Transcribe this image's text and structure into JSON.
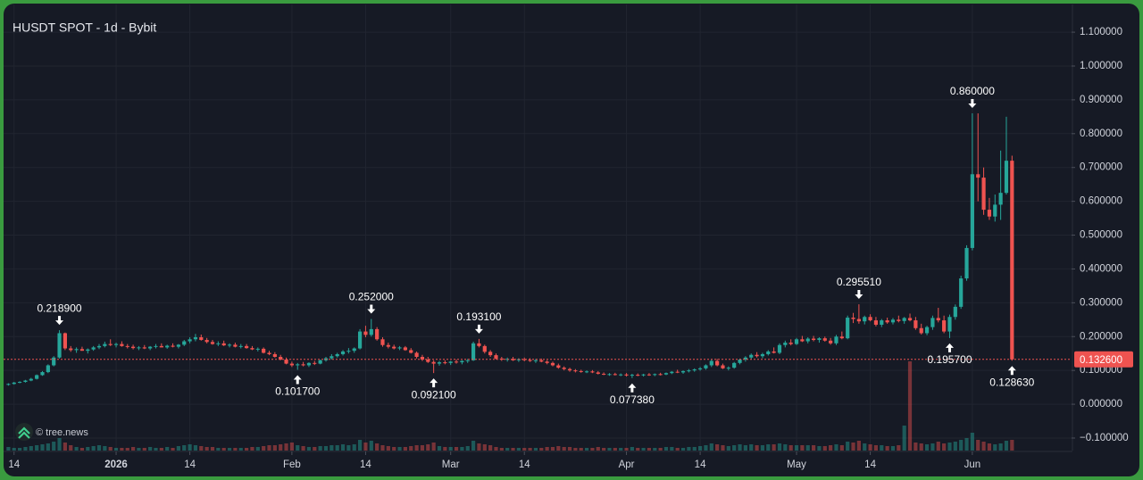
{
  "chart_data": {
    "type": "candlestick",
    "title": "HUSDT SPOT - 1d - Bybit",
    "watermark": "© tree.news",
    "up_color": "#26a69a",
    "down_color": "#ef5350",
    "grid": true,
    "xlim": [
      -1.48,
      187.5
    ],
    "ylim": [
      -0.137,
      1.182
    ],
    "y2lim": [
      0,
      500
    ],
    "xticks": [
      {
        "value": 1,
        "label": "14"
      },
      {
        "value": 19,
        "label": "2026"
      },
      {
        "value": 32,
        "label": "14"
      },
      {
        "value": 50,
        "label": "Feb"
      },
      {
        "value": 63,
        "label": "14"
      },
      {
        "value": 78,
        "label": "Mar"
      },
      {
        "value": 91,
        "label": "14"
      },
      {
        "value": 109,
        "label": "Apr"
      },
      {
        "value": 122,
        "label": "14"
      },
      {
        "value": 139,
        "label": "May"
      },
      {
        "value": 152,
        "label": "14"
      },
      {
        "value": 170,
        "label": "Jun"
      }
    ],
    "yticks": [
      {
        "value": 1.1,
        "label": "1.100000"
      },
      {
        "value": 1.0,
        "label": "1.000000"
      },
      {
        "value": 0.9,
        "label": "0.900000"
      },
      {
        "value": 0.8,
        "label": "0.800000"
      },
      {
        "value": 0.7,
        "label": "0.700000"
      },
      {
        "value": 0.6,
        "label": "0.600000"
      },
      {
        "value": 0.5,
        "label": "0.500000"
      },
      {
        "value": 0.4,
        "label": "0.400000"
      },
      {
        "value": 0.3,
        "label": "0.300000"
      },
      {
        "value": 0.2,
        "label": "0.200000"
      },
      {
        "value": 0.1,
        "label": "0.100000"
      },
      {
        "value": 0,
        "label": "0.000000"
      },
      {
        "value": -0.1,
        "label": "−0.100000"
      }
    ],
    "candles": [
      [
        0.058,
        0.062,
        0.055,
        0.06
      ],
      [
        0.06,
        0.066,
        0.058,
        0.064
      ],
      [
        0.064,
        0.068,
        0.062,
        0.066
      ],
      [
        0.066,
        0.072,
        0.064,
        0.07
      ],
      [
        0.07,
        0.078,
        0.068,
        0.075
      ],
      [
        0.075,
        0.088,
        0.073,
        0.086
      ],
      [
        0.086,
        0.098,
        0.084,
        0.095
      ],
      [
        0.095,
        0.118,
        0.092,
        0.115
      ],
      [
        0.115,
        0.142,
        0.112,
        0.138
      ],
      [
        0.138,
        0.2189,
        0.135,
        0.21
      ],
      [
        0.21,
        0.212,
        0.16,
        0.165
      ],
      [
        0.165,
        0.172,
        0.155,
        0.16
      ],
      [
        0.16,
        0.168,
        0.152,
        0.163
      ],
      [
        0.163,
        0.17,
        0.158,
        0.158
      ],
      [
        0.158,
        0.165,
        0.15,
        0.162
      ],
      [
        0.162,
        0.172,
        0.158,
        0.168
      ],
      [
        0.168,
        0.178,
        0.163,
        0.172
      ],
      [
        0.172,
        0.185,
        0.168,
        0.178
      ],
      [
        0.178,
        0.192,
        0.172,
        0.175
      ],
      [
        0.175,
        0.182,
        0.168,
        0.178
      ],
      [
        0.178,
        0.186,
        0.17,
        0.172
      ],
      [
        0.172,
        0.178,
        0.165,
        0.17
      ],
      [
        0.17,
        0.176,
        0.162,
        0.166
      ],
      [
        0.166,
        0.172,
        0.16,
        0.168
      ],
      [
        0.168,
        0.175,
        0.163,
        0.165
      ],
      [
        0.165,
        0.172,
        0.16,
        0.17
      ],
      [
        0.17,
        0.178,
        0.165,
        0.172
      ],
      [
        0.172,
        0.18,
        0.168,
        0.168
      ],
      [
        0.168,
        0.176,
        0.164,
        0.173
      ],
      [
        0.173,
        0.18,
        0.168,
        0.17
      ],
      [
        0.17,
        0.178,
        0.165,
        0.176
      ],
      [
        0.176,
        0.19,
        0.172,
        0.186
      ],
      [
        0.186,
        0.198,
        0.18,
        0.192
      ],
      [
        0.192,
        0.208,
        0.186,
        0.198
      ],
      [
        0.198,
        0.206,
        0.188,
        0.19
      ],
      [
        0.19,
        0.196,
        0.18,
        0.184
      ],
      [
        0.184,
        0.19,
        0.176,
        0.178
      ],
      [
        0.178,
        0.186,
        0.172,
        0.18
      ],
      [
        0.18,
        0.188,
        0.172,
        0.174
      ],
      [
        0.174,
        0.18,
        0.168,
        0.176
      ],
      [
        0.176,
        0.182,
        0.168,
        0.17
      ],
      [
        0.17,
        0.178,
        0.165,
        0.172
      ],
      [
        0.172,
        0.178,
        0.164,
        0.166
      ],
      [
        0.166,
        0.172,
        0.16,
        0.162
      ],
      [
        0.162,
        0.168,
        0.156,
        0.164
      ],
      [
        0.164,
        0.168,
        0.15,
        0.152
      ],
      [
        0.152,
        0.158,
        0.145,
        0.148
      ],
      [
        0.148,
        0.154,
        0.138,
        0.14
      ],
      [
        0.14,
        0.146,
        0.13,
        0.132
      ],
      [
        0.132,
        0.138,
        0.118,
        0.12
      ],
      [
        0.12,
        0.126,
        0.11,
        0.115
      ],
      [
        0.115,
        0.122,
        0.1017,
        0.118
      ],
      [
        0.118,
        0.125,
        0.112,
        0.115
      ],
      [
        0.115,
        0.124,
        0.11,
        0.122
      ],
      [
        0.122,
        0.128,
        0.116,
        0.12
      ],
      [
        0.12,
        0.132,
        0.118,
        0.13
      ],
      [
        0.13,
        0.14,
        0.126,
        0.136
      ],
      [
        0.136,
        0.148,
        0.132,
        0.142
      ],
      [
        0.142,
        0.152,
        0.138,
        0.148
      ],
      [
        0.148,
        0.16,
        0.144,
        0.156
      ],
      [
        0.156,
        0.166,
        0.15,
        0.158
      ],
      [
        0.158,
        0.168,
        0.152,
        0.165
      ],
      [
        0.165,
        0.222,
        0.162,
        0.215
      ],
      [
        0.215,
        0.232,
        0.198,
        0.205
      ],
      [
        0.205,
        0.252,
        0.2,
        0.222
      ],
      [
        0.222,
        0.228,
        0.188,
        0.192
      ],
      [
        0.192,
        0.198,
        0.17,
        0.175
      ],
      [
        0.175,
        0.182,
        0.165,
        0.17
      ],
      [
        0.17,
        0.176,
        0.162,
        0.165
      ],
      [
        0.165,
        0.172,
        0.16,
        0.168
      ],
      [
        0.168,
        0.172,
        0.158,
        0.16
      ],
      [
        0.16,
        0.166,
        0.15,
        0.152
      ],
      [
        0.152,
        0.156,
        0.135,
        0.14
      ],
      [
        0.14,
        0.146,
        0.128,
        0.132
      ],
      [
        0.132,
        0.14,
        0.122,
        0.125
      ],
      [
        0.125,
        0.13,
        0.0921,
        0.12
      ],
      [
        0.12,
        0.128,
        0.114,
        0.124
      ],
      [
        0.124,
        0.13,
        0.118,
        0.122
      ],
      [
        0.122,
        0.128,
        0.116,
        0.126
      ],
      [
        0.126,
        0.132,
        0.12,
        0.124
      ],
      [
        0.124,
        0.13,
        0.118,
        0.128
      ],
      [
        0.128,
        0.134,
        0.122,
        0.13
      ],
      [
        0.13,
        0.185,
        0.128,
        0.18
      ],
      [
        0.18,
        0.1931,
        0.168,
        0.172
      ],
      [
        0.172,
        0.176,
        0.15,
        0.155
      ],
      [
        0.155,
        0.16,
        0.14,
        0.145
      ],
      [
        0.145,
        0.15,
        0.132,
        0.135
      ],
      [
        0.135,
        0.14,
        0.128,
        0.132
      ],
      [
        0.132,
        0.138,
        0.126,
        0.134
      ],
      [
        0.134,
        0.14,
        0.128,
        0.13
      ],
      [
        0.13,
        0.136,
        0.125,
        0.133
      ],
      [
        0.133,
        0.138,
        0.127,
        0.131
      ],
      [
        0.131,
        0.136,
        0.125,
        0.128
      ],
      [
        0.128,
        0.134,
        0.122,
        0.13
      ],
      [
        0.13,
        0.135,
        0.124,
        0.126
      ],
      [
        0.126,
        0.13,
        0.118,
        0.122
      ],
      [
        0.122,
        0.126,
        0.112,
        0.115
      ],
      [
        0.115,
        0.12,
        0.105,
        0.108
      ],
      [
        0.108,
        0.112,
        0.1,
        0.104
      ],
      [
        0.104,
        0.108,
        0.096,
        0.1
      ],
      [
        0.1,
        0.104,
        0.094,
        0.098
      ],
      [
        0.098,
        0.102,
        0.093,
        0.096
      ],
      [
        0.096,
        0.1,
        0.092,
        0.097
      ],
      [
        0.097,
        0.101,
        0.092,
        0.094
      ],
      [
        0.094,
        0.098,
        0.088,
        0.09
      ],
      [
        0.09,
        0.094,
        0.086,
        0.088
      ],
      [
        0.088,
        0.092,
        0.084,
        0.089
      ],
      [
        0.089,
        0.093,
        0.085,
        0.087
      ],
      [
        0.087,
        0.091,
        0.083,
        0.088
      ],
      [
        0.088,
        0.092,
        0.082,
        0.085
      ],
      [
        0.085,
        0.09,
        0.07738,
        0.087
      ],
      [
        0.087,
        0.091,
        0.083,
        0.086
      ],
      [
        0.086,
        0.09,
        0.082,
        0.088
      ],
      [
        0.088,
        0.092,
        0.084,
        0.087
      ],
      [
        0.087,
        0.091,
        0.083,
        0.089
      ],
      [
        0.089,
        0.093,
        0.085,
        0.088
      ],
      [
        0.088,
        0.094,
        0.086,
        0.092
      ],
      [
        0.092,
        0.098,
        0.089,
        0.096
      ],
      [
        0.096,
        0.102,
        0.092,
        0.094
      ],
      [
        0.094,
        0.1,
        0.09,
        0.098
      ],
      [
        0.098,
        0.104,
        0.094,
        0.1
      ],
      [
        0.1,
        0.106,
        0.096,
        0.103
      ],
      [
        0.103,
        0.11,
        0.099,
        0.106
      ],
      [
        0.106,
        0.118,
        0.102,
        0.115
      ],
      [
        0.115,
        0.132,
        0.11,
        0.128
      ],
      [
        0.128,
        0.134,
        0.112,
        0.115
      ],
      [
        0.115,
        0.12,
        0.104,
        0.106
      ],
      [
        0.106,
        0.112,
        0.1,
        0.108
      ],
      [
        0.108,
        0.125,
        0.105,
        0.122
      ],
      [
        0.122,
        0.135,
        0.118,
        0.132
      ],
      [
        0.132,
        0.142,
        0.126,
        0.138
      ],
      [
        0.138,
        0.15,
        0.132,
        0.146
      ],
      [
        0.146,
        0.154,
        0.138,
        0.142
      ],
      [
        0.142,
        0.152,
        0.136,
        0.148
      ],
      [
        0.148,
        0.16,
        0.144,
        0.156
      ],
      [
        0.156,
        0.168,
        0.15,
        0.152
      ],
      [
        0.152,
        0.18,
        0.148,
        0.175
      ],
      [
        0.175,
        0.188,
        0.168,
        0.182
      ],
      [
        0.182,
        0.192,
        0.174,
        0.178
      ],
      [
        0.178,
        0.196,
        0.175,
        0.192
      ],
      [
        0.192,
        0.202,
        0.184,
        0.186
      ],
      [
        0.186,
        0.198,
        0.18,
        0.194
      ],
      [
        0.194,
        0.202,
        0.186,
        0.19
      ],
      [
        0.19,
        0.198,
        0.182,
        0.195
      ],
      [
        0.195,
        0.2,
        0.185,
        0.188
      ],
      [
        0.188,
        0.196,
        0.176,
        0.18
      ],
      [
        0.18,
        0.205,
        0.175,
        0.2
      ],
      [
        0.2,
        0.215,
        0.192,
        0.195
      ],
      [
        0.195,
        0.262,
        0.192,
        0.256
      ],
      [
        0.256,
        0.27,
        0.24,
        0.252
      ],
      [
        0.252,
        0.29551,
        0.238,
        0.245
      ],
      [
        0.245,
        0.262,
        0.236,
        0.258
      ],
      [
        0.258,
        0.266,
        0.245,
        0.248
      ],
      [
        0.248,
        0.258,
        0.23,
        0.235
      ],
      [
        0.235,
        0.252,
        0.228,
        0.248
      ],
      [
        0.248,
        0.256,
        0.238,
        0.242
      ],
      [
        0.242,
        0.255,
        0.236,
        0.25
      ],
      [
        0.25,
        0.262,
        0.242,
        0.246
      ],
      [
        0.246,
        0.258,
        0.238,
        0.255
      ],
      [
        0.255,
        0.268,
        0.245,
        0.248
      ],
      [
        0.248,
        0.258,
        0.22,
        0.225
      ],
      [
        0.225,
        0.238,
        0.206,
        0.21
      ],
      [
        0.21,
        0.232,
        0.204,
        0.228
      ],
      [
        0.228,
        0.262,
        0.22,
        0.255
      ],
      [
        0.255,
        0.285,
        0.242,
        0.248
      ],
      [
        0.248,
        0.262,
        0.21,
        0.215
      ],
      [
        0.215,
        0.265,
        0.1957,
        0.258
      ],
      [
        0.258,
        0.295,
        0.25,
        0.288
      ],
      [
        0.288,
        0.38,
        0.282,
        0.372
      ],
      [
        0.372,
        0.47,
        0.365,
        0.462
      ],
      [
        0.462,
        0.86,
        0.455,
        0.68
      ],
      [
        0.68,
        0.86,
        0.6,
        0.67
      ],
      [
        0.67,
        0.7,
        0.56,
        0.575
      ],
      [
        0.575,
        0.61,
        0.545,
        0.555
      ],
      [
        0.555,
        0.62,
        0.54,
        0.59
      ],
      [
        0.59,
        0.75,
        0.545,
        0.625
      ],
      [
        0.625,
        0.85,
        0.62,
        0.72
      ],
      [
        0.72,
        0.735,
        0.12863,
        0.1326
      ]
    ],
    "volume": [
      4,
      3,
      3,
      4,
      5,
      6,
      7,
      8,
      10,
      14,
      9,
      6,
      4,
      3,
      4,
      5,
      6,
      5,
      4,
      3,
      3,
      3,
      4,
      3,
      3,
      4,
      3,
      3,
      4,
      3,
      5,
      6,
      7,
      6,
      5,
      4,
      4,
      3,
      3,
      3,
      3,
      3,
      3,
      4,
      4,
      5,
      6,
      6,
      7,
      8,
      9,
      6,
      5,
      4,
      4,
      5,
      5,
      6,
      6,
      7,
      6,
      7,
      12,
      9,
      11,
      8,
      6,
      5,
      4,
      4,
      4,
      5,
      6,
      6,
      7,
      9,
      5,
      4,
      4,
      4,
      4,
      5,
      11,
      8,
      7,
      6,
      4,
      3,
      3,
      3,
      3,
      3,
      3,
      3,
      3,
      4,
      4,
      5,
      4,
      4,
      3,
      3,
      3,
      3,
      4,
      3,
      3,
      3,
      3,
      3,
      4,
      3,
      3,
      3,
      3,
      3,
      4,
      4,
      3,
      3,
      4,
      4,
      5,
      6,
      8,
      7,
      6,
      5,
      6,
      7,
      6,
      7,
      6,
      6,
      7,
      7,
      8,
      7,
      6,
      6,
      6,
      6,
      6,
      5,
      5,
      6,
      7,
      6,
      10,
      9,
      11,
      8,
      7,
      6,
      6,
      5,
      5,
      6,
      28,
      100,
      9,
      8,
      7,
      8,
      10,
      8,
      9,
      10,
      12,
      14,
      20,
      12,
      10,
      8,
      7,
      8,
      11,
      12
    ],
    "markers": [
      {
        "candle": 9,
        "at": "high",
        "label": "0.218900"
      },
      {
        "candle": 51,
        "at": "low",
        "label": "0.101700"
      },
      {
        "candle": 64,
        "at": "high",
        "label": "0.252000"
      },
      {
        "candle": 75,
        "at": "low",
        "label": "0.092100"
      },
      {
        "candle": 83,
        "at": "high",
        "label": "0.193100"
      },
      {
        "candle": 110,
        "at": "low",
        "label": "0.077380"
      },
      {
        "candle": 150,
        "at": "high",
        "label": "0.295510"
      },
      {
        "candle": 166,
        "at": "low",
        "label": "0.195700"
      },
      {
        "candle": 170,
        "at": "high",
        "label": "0.860000"
      },
      {
        "candle": 177,
        "at": "low",
        "label": "0.128630"
      }
    ],
    "last_label": "0.132600"
  }
}
